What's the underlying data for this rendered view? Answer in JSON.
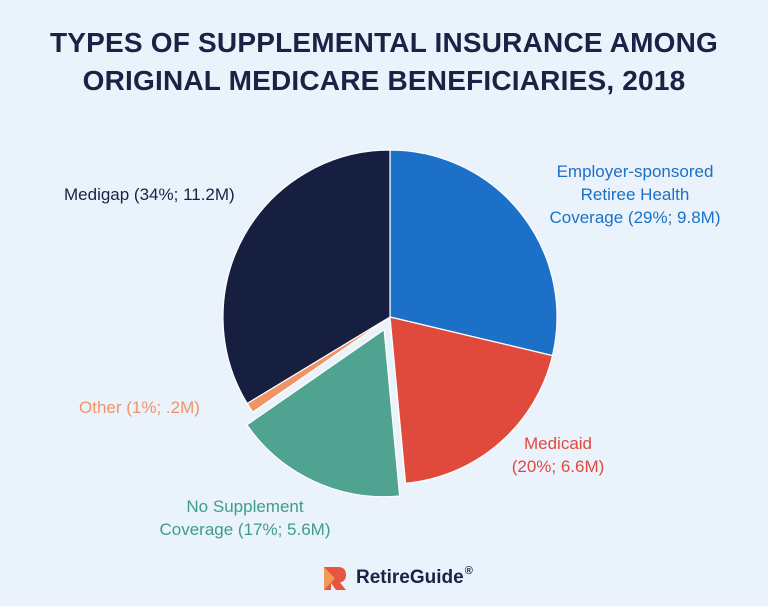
{
  "title_lines": [
    "TYPES OF SUPPLEMENTAL INSURANCE AMONG",
    "ORIGINAL MEDICARE BENEFICIARIES, 2018"
  ],
  "chart_data": {
    "type": "pie",
    "title": "TYPES OF SUPPLEMENTAL INSURANCE AMONG ORIGINAL MEDICARE BENEFICIARIES, 2018",
    "slices": [
      {
        "name": "Employer-sponsored Retiree Health Coverage",
        "percent": 29,
        "value_millions": 9.8,
        "color": "#1c70c7",
        "exploded": false,
        "label_lines": [
          "Employer-sponsored",
          "Retiree Health",
          "Coverage (29%; 9.8M)"
        ]
      },
      {
        "name": "Medicaid",
        "percent": 20,
        "value_millions": 6.6,
        "color": "#e04a3d",
        "exploded": false,
        "label_lines": [
          "Medicaid",
          "(20%; 6.6M)"
        ]
      },
      {
        "name": "No Supplement Coverage",
        "percent": 17,
        "value_millions": 5.6,
        "color": "#50a391",
        "exploded": true,
        "label_lines": [
          "No Supplement",
          "Coverage (17%; 5.6M)"
        ]
      },
      {
        "name": "Other",
        "percent": 1,
        "value_millions": 0.2,
        "color": "#ef9466",
        "exploded": false,
        "label_lines": [
          "Other (1%; .2M)"
        ]
      },
      {
        "name": "Medigap",
        "percent": 34,
        "value_millions": 11.2,
        "color": "#161f3f",
        "exploded": false,
        "label_lines": [
          "Medigap (34%; 11.2M)"
        ]
      }
    ]
  },
  "brand": {
    "name": "RetireGuide",
    "registered": "®",
    "logo_colors": [
      "#e8553f",
      "#f39a57"
    ]
  }
}
